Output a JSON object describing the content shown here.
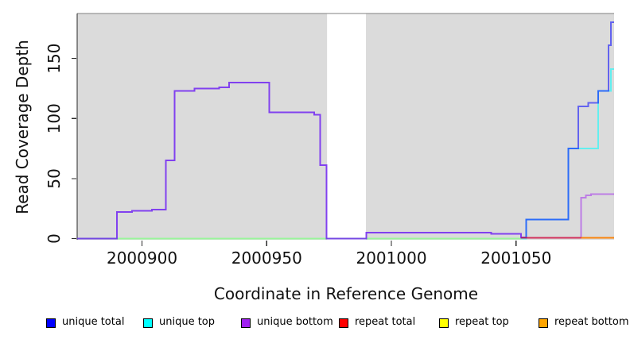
{
  "chart_data": {
    "type": "line",
    "subtype": "step-coverage-plot",
    "title": "",
    "xlabel": "Coordinate in Reference Genome",
    "ylabel": "Read Coverage Depth",
    "xlim": [
      2000874,
      2001089.3
    ],
    "ylim": [
      0,
      187
    ],
    "grid": false,
    "panel_background": "#DBDBDB",
    "panel_border_top_color": "#808080",
    "axis_line_color": "#2a2a2a",
    "gap_region": {
      "x0": 2000974.2,
      "x1": 2000989.8,
      "color": "#FFFFFF",
      "note": "white band = no coverage gap"
    },
    "x_ticks": [
      {
        "value": 2000900,
        "label": "2000900"
      },
      {
        "value": 2000950,
        "label": "2000950"
      },
      {
        "value": 2001000,
        "label": "2001000"
      },
      {
        "value": 2001050,
        "label": "2001050"
      }
    ],
    "y_ticks": [
      {
        "value": 0,
        "label": "0"
      },
      {
        "value": 50,
        "label": "50"
      },
      {
        "value": 100,
        "label": "100"
      },
      {
        "value": 150,
        "label": "150"
      }
    ],
    "step_mode": "after",
    "series": [
      {
        "name": "unique top",
        "color": "#00FFFF",
        "opacity": 0.55,
        "points": [
          [
            2000874,
            0
          ],
          [
            2001054,
            16
          ],
          [
            2001071,
            75
          ],
          [
            2001083,
            123
          ],
          [
            2001088,
            141
          ],
          [
            2001089.3,
            141
          ]
        ]
      },
      {
        "name": "repeat top",
        "color": "#FFFF00",
        "opacity": 0.35,
        "points": [
          [
            2000874,
            0
          ],
          [
            2001052,
            0
          ]
        ]
      },
      {
        "name": "unique total",
        "color": "#0000FF",
        "opacity": 0.55,
        "points": [
          [
            2000874,
            0
          ],
          [
            2000890,
            22
          ],
          [
            2000896,
            23
          ],
          [
            2000904,
            24
          ],
          [
            2000909.5,
            65
          ],
          [
            2000913,
            123
          ],
          [
            2000921,
            125
          ],
          [
            2000931,
            126
          ],
          [
            2000935,
            130
          ],
          [
            2000951,
            105
          ],
          [
            2000969,
            103
          ],
          [
            2000971.5,
            61
          ],
          [
            2000974,
            0
          ],
          [
            2000990,
            5
          ],
          [
            2001040,
            4
          ],
          [
            2001052,
            1
          ],
          [
            2001054,
            16
          ],
          [
            2001071,
            75
          ],
          [
            2001075,
            110
          ],
          [
            2001079,
            113
          ],
          [
            2001083,
            123
          ],
          [
            2001087,
            161
          ],
          [
            2001088,
            180
          ],
          [
            2001089.3,
            180
          ]
        ]
      },
      {
        "name": "unique bottom",
        "color": "#A020F0",
        "opacity": 0.5,
        "points": [
          [
            2000874,
            0
          ],
          [
            2000890,
            22
          ],
          [
            2000896,
            23
          ],
          [
            2000904,
            24
          ],
          [
            2000909.5,
            65
          ],
          [
            2000913,
            123
          ],
          [
            2000921,
            125
          ],
          [
            2000931,
            126
          ],
          [
            2000935,
            130
          ],
          [
            2000951,
            105
          ],
          [
            2000969,
            103
          ],
          [
            2000971.5,
            61
          ],
          [
            2000974,
            0
          ],
          [
            2000990,
            5
          ],
          [
            2001040,
            4
          ],
          [
            2001052,
            0.5
          ],
          [
            2001076,
            34
          ],
          [
            2001078,
            36
          ],
          [
            2001080,
            37
          ],
          [
            2001089.3,
            37
          ]
        ]
      },
      {
        "name": "repeat total",
        "color": "#E00000",
        "opacity": 0.6,
        "points": [
          [
            2001052,
            0.7
          ],
          [
            2001089.3,
            0.7
          ]
        ]
      },
      {
        "name": "repeat bottom",
        "color": "#FF8C00",
        "opacity": 0.85,
        "points": [
          [
            2001076,
            0.5
          ],
          [
            2001089.3,
            0.5
          ]
        ]
      }
    ]
  },
  "labels": {
    "ylabel": "Read Coverage Depth",
    "xlabel": "Coordinate in Reference Genome"
  },
  "legend": {
    "items": [
      {
        "label": "unique total",
        "color": "#0000FF"
      },
      {
        "label": "unique top",
        "color": "#00FFFF"
      },
      {
        "label": "unique bottom",
        "color": "#A020F0"
      },
      {
        "label": "repeat total",
        "color": "#FF0000"
      },
      {
        "label": "repeat top",
        "color": "#FFFF00"
      },
      {
        "label": "repeat bottom",
        "color": "#FFA500"
      }
    ]
  }
}
